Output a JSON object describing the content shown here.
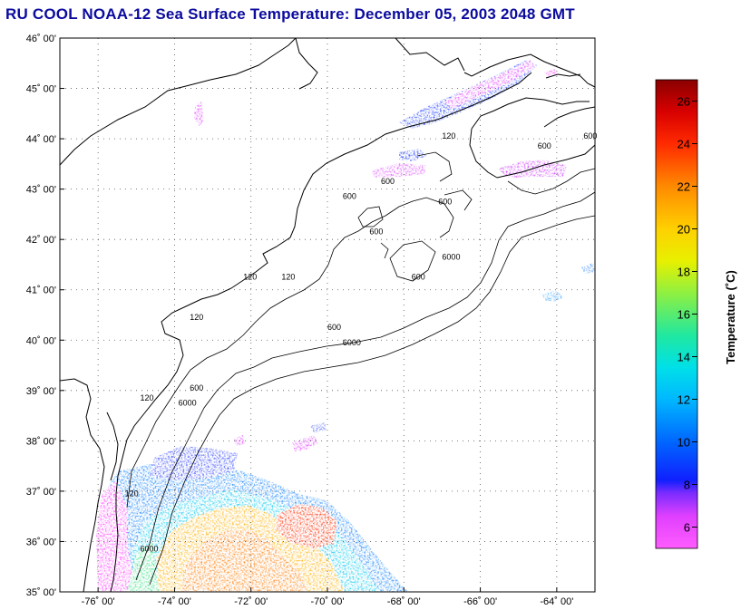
{
  "title": "RU COOL  NOAA-12  Sea Surface Temperature:  December 05, 2003 2048 GMT",
  "map": {
    "lon_range": [
      -77,
      -63
    ],
    "lat_range": [
      35,
      46
    ],
    "lat_ticks": [
      {
        "value": 46,
        "label": "46˚ 00'"
      },
      {
        "value": 45,
        "label": "45˚ 00'"
      },
      {
        "value": 44,
        "label": "44˚ 00'"
      },
      {
        "value": 43,
        "label": "43˚ 00'"
      },
      {
        "value": 42,
        "label": "42˚ 00'"
      },
      {
        "value": 41,
        "label": "41˚ 00'"
      },
      {
        "value": 40,
        "label": "40˚ 00'"
      },
      {
        "value": 39,
        "label": "39˚ 00'"
      },
      {
        "value": 38,
        "label": "38˚ 00'"
      },
      {
        "value": 37,
        "label": "37˚ 00'"
      },
      {
        "value": 36,
        "label": "36˚ 00'"
      },
      {
        "value": 35,
        "label": "35˚ 00'"
      }
    ],
    "lon_ticks": [
      {
        "value": -76,
        "label": "-76˚ 00'"
      },
      {
        "value": -74,
        "label": "-74˚ 00'"
      },
      {
        "value": -72,
        "label": "-72˚ 00'"
      },
      {
        "value": -70,
        "label": "-70˚ 00'"
      },
      {
        "value": -68,
        "label": "-68˚ 00'"
      },
      {
        "value": -66,
        "label": "-66˚ 00'"
      },
      {
        "value": -64,
        "label": "-64˚ 00'"
      }
    ],
    "grid": "dotted",
    "contour_labels": [
      {
        "text": "120",
        "lon": -72.2,
        "lat": 41.2
      },
      {
        "text": "120",
        "lon": -71.2,
        "lat": 41.2
      },
      {
        "text": "120",
        "lon": -73.6,
        "lat": 40.4
      },
      {
        "text": "120",
        "lon": -74.9,
        "lat": 38.8
      },
      {
        "text": "600",
        "lon": -73.6,
        "lat": 39.0
      },
      {
        "text": "6000",
        "lon": -73.9,
        "lat": 38.7
      },
      {
        "text": "600",
        "lon": -70.0,
        "lat": 40.2
      },
      {
        "text": "6000",
        "lon": -69.6,
        "lat": 39.9
      },
      {
        "text": "600",
        "lon": -67.8,
        "lat": 41.2
      },
      {
        "text": "6000",
        "lon": -67.0,
        "lat": 41.6
      },
      {
        "text": "600",
        "lon": -67.1,
        "lat": 42.7
      },
      {
        "text": "600",
        "lon": -68.6,
        "lat": 43.1
      },
      {
        "text": "600",
        "lon": -69.6,
        "lat": 42.8
      },
      {
        "text": "600",
        "lon": -68.9,
        "lat": 42.1
      },
      {
        "text": "120",
        "lon": -67.0,
        "lat": 44.0
      },
      {
        "text": "600",
        "lon": -64.5,
        "lat": 43.8
      },
      {
        "text": "600",
        "lon": -63.3,
        "lat": 44.0
      },
      {
        "text": "6000",
        "lon": -74.9,
        "lat": 35.8
      },
      {
        "text": "120",
        "lon": -75.3,
        "lat": 36.9
      }
    ]
  },
  "colorbar": {
    "title": "Temperature (˚C)",
    "min": 5,
    "max": 27,
    "ticks": [
      {
        "value": 6,
        "label": "6"
      },
      {
        "value": 8,
        "label": "8"
      },
      {
        "value": 10,
        "label": "10"
      },
      {
        "value": 12,
        "label": "12"
      },
      {
        "value": 14,
        "label": "14"
      },
      {
        "value": 16,
        "label": "16"
      },
      {
        "value": 18,
        "label": "18"
      },
      {
        "value": 20,
        "label": "20"
      },
      {
        "value": 22,
        "label": "22"
      },
      {
        "value": 24,
        "label": "24"
      },
      {
        "value": 26,
        "label": "26"
      }
    ],
    "stops": [
      {
        "value": 5,
        "color": "#ff5cff"
      },
      {
        "value": 6.5,
        "color": "#e040ff"
      },
      {
        "value": 7.6,
        "color": "#7a2cff"
      },
      {
        "value": 8.2,
        "color": "#1020ff"
      },
      {
        "value": 10,
        "color": "#0066ff"
      },
      {
        "value": 12,
        "color": "#00b8ff"
      },
      {
        "value": 13.5,
        "color": "#00e0e8"
      },
      {
        "value": 15,
        "color": "#20e8a0"
      },
      {
        "value": 17,
        "color": "#90f040"
      },
      {
        "value": 18.5,
        "color": "#e8f000"
      },
      {
        "value": 20,
        "color": "#ffd000"
      },
      {
        "value": 22,
        "color": "#ff8a00"
      },
      {
        "value": 24,
        "color": "#ff2a00"
      },
      {
        "value": 25.5,
        "color": "#d80000"
      },
      {
        "value": 27,
        "color": "#8a0000"
      }
    ]
  },
  "colors": {
    "title": "#0b0b9e",
    "frame": "#000000",
    "coast": "#000000"
  }
}
